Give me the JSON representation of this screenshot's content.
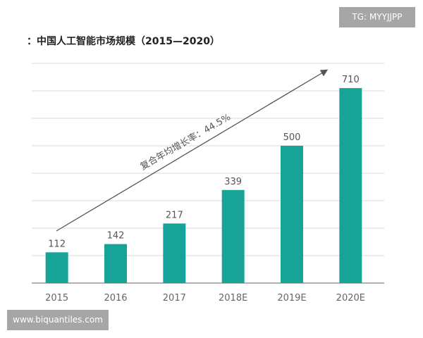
{
  "watermark_top": "TG: MYYJJPP",
  "watermark_bottom": "www.biquantiles.com",
  "chart_data": {
    "type": "bar",
    "title": "：中国人工智能市场规模（2015—2020）",
    "categories": [
      "2015",
      "2016",
      "2017",
      "2018E",
      "2019E",
      "2020E"
    ],
    "values": [
      112,
      142,
      217,
      339,
      500,
      710
    ],
    "ylim": [
      0,
      800
    ],
    "grid": true,
    "annotation": "复合年均增长率：44.5%",
    "bar_color": "#17a398",
    "xlabel": "",
    "ylabel": ""
  }
}
